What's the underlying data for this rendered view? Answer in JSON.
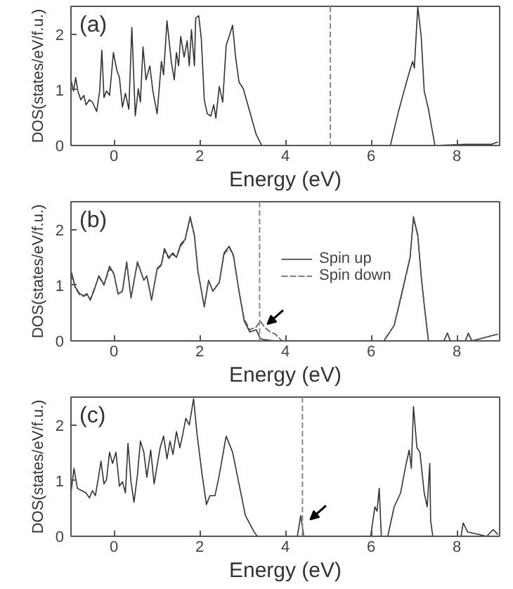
{
  "chart_data": [
    {
      "type": "line",
      "xlabel": "Energy (eV)",
      "ylabel": "DOS(states/eV/f.u.)",
      "annotations": [
        "(a)"
      ],
      "xlim": [
        -1,
        9
      ],
      "ylim": [
        0,
        2.5
      ],
      "xticks": [
        0,
        2,
        4,
        6,
        8
      ],
      "yticks": [
        0,
        1,
        2
      ],
      "grid": false,
      "legend": false,
      "ref_lines": [
        {
          "axis": "x",
          "value": 5.05,
          "color": "#888888",
          "line_style": "dashed"
        }
      ],
      "series": [
        {
          "color": "#333333",
          "line_style": "solid",
          "x": [
            -1.0,
            -0.94,
            -0.89,
            -0.84,
            -0.77,
            -0.7,
            -0.65,
            -0.57,
            -0.5,
            -0.4,
            -0.33,
            -0.28,
            -0.23,
            -0.17,
            -0.1,
            -0.01,
            0.07,
            0.13,
            0.2,
            0.27,
            0.35,
            0.42,
            0.5,
            0.57,
            0.62,
            0.68,
            0.75,
            0.84,
            0.91,
            1.01,
            1.11,
            1.16,
            1.24,
            1.34,
            1.41,
            1.46,
            1.51,
            1.56,
            1.64,
            1.71,
            1.76,
            1.81,
            1.88,
            1.91,
            1.98,
            2.04,
            2.11,
            2.18,
            2.26,
            2.33,
            2.38,
            2.46,
            2.54,
            2.62,
            2.69,
            2.77,
            2.84,
            2.92,
            3.02,
            3.17,
            3.32,
            3.45,
            6.45,
            6.64,
            6.77,
            6.89,
            6.97,
            7.01,
            7.09,
            7.17,
            7.24,
            7.34,
            7.49,
            8.2,
            8.8,
            8.95
          ],
          "values": [
            1.18,
            0.98,
            1.22,
            0.98,
            0.82,
            0.9,
            0.73,
            0.82,
            0.78,
            0.61,
            0.98,
            1.71,
            0.86,
            0.98,
            0.9,
            1.67,
            1.35,
            1.22,
            0.69,
            0.94,
            0.65,
            2.12,
            0.53,
            1.02,
            0.78,
            1.77,
            1.18,
            1.43,
            0.98,
            0.57,
            1.51,
            1.27,
            2.24,
            1.51,
            1.18,
            1.67,
            1.43,
            1.96,
            1.59,
            1.88,
            1.43,
            2.08,
            1.43,
            2.29,
            2.33,
            1.92,
            0.82,
            0.57,
            0.53,
            0.73,
            0.49,
            1.06,
            0.78,
            1.8,
            1.96,
            2.16,
            1.59,
            1.14,
            1.02,
            0.61,
            0.2,
            0,
            0,
            0.61,
            0.98,
            1.31,
            1.51,
            1.39,
            2.49,
            1.96,
            0.98,
            0.65,
            0,
            0.02,
            0.02,
            0.06
          ]
        }
      ]
    },
    {
      "type": "line",
      "xlabel": "Energy (eV)",
      "ylabel": "DOS(states/eV/f.u.)",
      "annotations": [
        "(b)"
      ],
      "xlim": [
        -1,
        9
      ],
      "ylim": [
        0,
        2.5
      ],
      "xticks": [
        0,
        2,
        4,
        6,
        8
      ],
      "yticks": [
        0,
        1,
        2
      ],
      "grid": false,
      "legend": "top",
      "ref_lines": [
        {
          "axis": "x",
          "value": 3.4,
          "color": "#888888",
          "line_style": "dashed"
        }
      ],
      "series": [
        {
          "name": "Spin up",
          "color": "#333333",
          "line_style": "solid",
          "x": [
            -1,
            -0.9,
            -0.8,
            -0.7,
            -0.63,
            -0.55,
            -0.45,
            -0.35,
            -0.23,
            -0.1,
            0,
            0.1,
            0.2,
            0.3,
            0.4,
            0.55,
            0.7,
            0.77,
            0.88,
            1.01,
            1.11,
            1.18,
            1.28,
            1.38,
            1.46,
            1.56,
            1.66,
            1.78,
            1.88,
            1.96,
            2.11,
            2.21,
            2.31,
            2.46,
            2.57,
            2.69,
            2.79,
            2.92,
            3.04,
            3.17,
            3.32,
            3.42,
            3.52,
            3.65,
            3.77,
            3.92,
            6.3,
            6.54,
            6.69,
            6.81,
            6.91,
            6.99,
            7.09,
            7.17,
            7.24,
            7.34,
            7.7,
            7.78,
            7.85,
            8.2,
            8.27,
            8.35,
            8.95
          ],
          "values": [
            1.26,
            0.97,
            0.85,
            0.81,
            0.85,
            0.73,
            0.93,
            1.17,
            1.01,
            1.34,
            1.21,
            0.85,
            0.89,
            1.42,
            0.77,
            1.42,
            1.09,
            1.17,
            0.73,
            1.3,
            1.38,
            1.66,
            1.5,
            1.58,
            1.5,
            1.74,
            1.82,
            2.23,
            1.9,
            1.26,
            0.61,
            1.09,
            0.89,
            1.05,
            1.58,
            1.7,
            1.54,
            0.89,
            0.36,
            0.16,
            0.2,
            0.04,
            0.02,
            0.01,
            0,
            0,
            0,
            0.28,
            0.77,
            1.17,
            1.5,
            2.23,
            1.9,
            1.17,
            0.65,
            0,
            0,
            0.14,
            0,
            0,
            0.14,
            0,
            0.12
          ]
        },
        {
          "name": "Spin down",
          "color": "#555555",
          "line_style": "dashed",
          "x": [
            -1,
            -0.9,
            -0.8,
            -0.7,
            -0.63,
            -0.55,
            -0.45,
            -0.35,
            -0.23,
            -0.1,
            0,
            0.1,
            0.2,
            0.3,
            0.4,
            0.55,
            0.7,
            0.77,
            0.88,
            1.01,
            1.11,
            1.18,
            1.28,
            1.38,
            1.46,
            1.56,
            1.66,
            1.78,
            1.88,
            1.96,
            2.11,
            2.21,
            2.31,
            2.46,
            2.57,
            2.69,
            2.79,
            2.92,
            3.04,
            3.17,
            3.32,
            3.42,
            3.52,
            3.65,
            3.77,
            3.92,
            6.3,
            6.54,
            6.69,
            6.81,
            6.91,
            6.99,
            7.09,
            7.17,
            7.24,
            7.34,
            7.7,
            7.78,
            7.85,
            8.2,
            8.27,
            8.35,
            8.95
          ],
          "values": [
            1.2,
            0.95,
            0.83,
            0.8,
            0.83,
            0.75,
            0.95,
            1.15,
            1.0,
            1.3,
            1.2,
            0.83,
            0.9,
            1.4,
            0.78,
            1.4,
            1.1,
            1.15,
            0.75,
            1.28,
            1.36,
            1.62,
            1.48,
            1.55,
            1.5,
            1.7,
            1.8,
            2.2,
            1.88,
            1.25,
            0.62,
            1.07,
            0.9,
            1.05,
            1.55,
            1.68,
            1.52,
            0.9,
            0.4,
            0.2,
            0.25,
            0.36,
            0.24,
            0.16,
            0.12,
            0,
            0,
            0.28,
            0.75,
            1.15,
            1.48,
            2.2,
            1.88,
            1.15,
            0.65,
            0,
            0,
            0.14,
            0,
            0,
            0.14,
            0,
            0.12
          ]
        }
      ]
    },
    {
      "type": "line",
      "xlabel": "Energy (eV)",
      "ylabel": "DOS(states/eV/f.u.)",
      "annotations": [
        "(c)"
      ],
      "xlim": [
        -1,
        9
      ],
      "ylim": [
        0,
        2.5
      ],
      "xticks": [
        0,
        2,
        4,
        6,
        8
      ],
      "yticks": [
        0,
        1,
        2
      ],
      "grid": false,
      "legend": false,
      "ref_lines": [
        {
          "axis": "x",
          "value": 4.4,
          "color": "#888888",
          "line_style": "dashed"
        }
      ],
      "series": [
        {
          "color": "#333333",
          "line_style": "solid",
          "x": [
            -1,
            -0.93,
            -0.85,
            -0.75,
            -0.65,
            -0.57,
            -0.5,
            -0.43,
            -0.35,
            -0.3,
            -0.23,
            -0.17,
            -0.1,
            -0.03,
            0.05,
            0.13,
            0.2,
            0.27,
            0.33,
            0.4,
            0.47,
            0.55,
            0.62,
            0.7,
            0.77,
            0.86,
            0.94,
            1.01,
            1.08,
            1.16,
            1.24,
            1.31,
            1.38,
            1.46,
            1.54,
            1.61,
            1.68,
            1.76,
            1.86,
            1.94,
            2.06,
            2.16,
            2.24,
            2.36,
            2.46,
            2.62,
            2.77,
            2.92,
            3.07,
            3.27,
            3.35,
            4.28,
            4.36,
            4.43,
            5.99,
            6.09,
            6.14,
            6.19,
            6.24,
            6.39,
            6.54,
            6.69,
            6.81,
            6.89,
            6.94,
            6.99,
            7.07,
            7.14,
            7.24,
            7.31,
            7.37,
            7.39,
            7.44,
            8.1,
            8.15,
            8.25,
            8.7,
            8.85,
            8.95
          ],
          "values": [
            0.78,
            1.22,
            0.86,
            0.82,
            0.78,
            0.69,
            0.82,
            0.73,
            1.1,
            1.35,
            0.94,
            1.02,
            1.51,
            1.31,
            1.51,
            0.9,
            0.98,
            0.78,
            1.67,
            0.98,
            0.61,
            1.1,
            1.71,
            1.51,
            1.06,
            1.55,
            0.94,
            1.27,
            1.59,
            1.8,
            1.39,
            1.71,
            1.47,
            1.88,
            1.59,
            1.84,
            2.12,
            2.0,
            2.47,
            1.84,
            1.1,
            0.57,
            0.73,
            0.73,
            1.1,
            1.8,
            1.51,
            0.94,
            0.37,
            0.08,
            0,
            0,
            0.37,
            0,
            0,
            0.53,
            0.45,
            0.86,
            0,
            0,
            0.53,
            0.78,
            1.27,
            1.55,
            1.22,
            2.33,
            1.59,
            1.51,
            0.78,
            0.53,
            1.31,
            0.29,
            0,
            0,
            0.24,
            0.08,
            0,
            0.12,
            0.04
          ]
        }
      ]
    }
  ]
}
